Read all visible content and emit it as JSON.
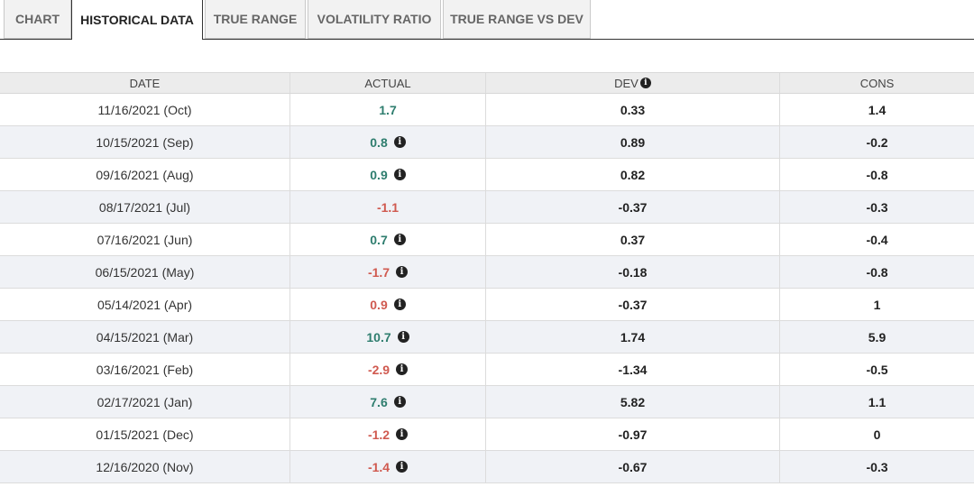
{
  "tabs": [
    {
      "label": "CHART",
      "active": false
    },
    {
      "label": "HISTORICAL DATA",
      "active": true
    },
    {
      "label": "TRUE RANGE",
      "active": false
    },
    {
      "label": "VOLATILITY RATIO",
      "active": false
    },
    {
      "label": "TRUE RANGE VS DEV",
      "active": false
    }
  ],
  "table": {
    "headers": {
      "date": "DATE",
      "actual": "ACTUAL",
      "dev": "DEV",
      "cons": "CONS"
    },
    "rows": [
      {
        "date": "11/16/2021 (Oct)",
        "actual": "1.7",
        "actual_dir": "pos",
        "info": false,
        "dev": "0.33",
        "cons": "1.4"
      },
      {
        "date": "10/15/2021 (Sep)",
        "actual": "0.8",
        "actual_dir": "pos",
        "info": true,
        "dev": "0.89",
        "cons": "-0.2"
      },
      {
        "date": "09/16/2021 (Aug)",
        "actual": "0.9",
        "actual_dir": "pos",
        "info": true,
        "dev": "0.82",
        "cons": "-0.8"
      },
      {
        "date": "08/17/2021 (Jul)",
        "actual": "-1.1",
        "actual_dir": "neg",
        "info": false,
        "dev": "-0.37",
        "cons": "-0.3"
      },
      {
        "date": "07/16/2021 (Jun)",
        "actual": "0.7",
        "actual_dir": "pos",
        "info": true,
        "dev": "0.37",
        "cons": "-0.4"
      },
      {
        "date": "06/15/2021 (May)",
        "actual": "-1.7",
        "actual_dir": "neg",
        "info": true,
        "dev": "-0.18",
        "cons": "-0.8"
      },
      {
        "date": "05/14/2021 (Apr)",
        "actual": "0.9",
        "actual_dir": "neg",
        "info": true,
        "dev": "-0.37",
        "cons": "1"
      },
      {
        "date": "04/15/2021 (Mar)",
        "actual": "10.7",
        "actual_dir": "pos",
        "info": true,
        "dev": "1.74",
        "cons": "5.9"
      },
      {
        "date": "03/16/2021 (Feb)",
        "actual": "-2.9",
        "actual_dir": "neg",
        "info": true,
        "dev": "-1.34",
        "cons": "-0.5"
      },
      {
        "date": "02/17/2021 (Jan)",
        "actual": "7.6",
        "actual_dir": "pos",
        "info": true,
        "dev": "5.82",
        "cons": "1.1"
      },
      {
        "date": "01/15/2021 (Dec)",
        "actual": "-1.2",
        "actual_dir": "neg",
        "info": true,
        "dev": "-0.97",
        "cons": "0"
      },
      {
        "date": "12/16/2020 (Nov)",
        "actual": "-1.4",
        "actual_dir": "neg",
        "info": true,
        "dev": "-0.67",
        "cons": "-0.3"
      }
    ]
  },
  "icons": {
    "info": "info-icon"
  },
  "colors": {
    "positive": "#2e7d6e",
    "negative": "#d05a50",
    "alt_row": "#f0f2f6"
  }
}
